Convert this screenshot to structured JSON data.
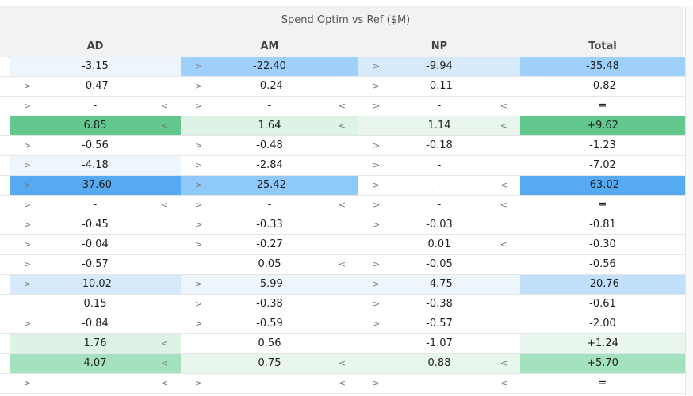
{
  "table": {
    "title": "Spend Optim vs Ref ($M)",
    "columns": [
      "AD",
      "AM",
      "NP",
      "Total"
    ],
    "colors": {
      "blue_1": "#eef6fd",
      "blue_2": "#d6eafb",
      "blue_3": "#c2e0fb",
      "blue_4": "#9fd0fb",
      "blue_5": "#8fc9fa",
      "blue_6": "#55aaf2",
      "green_1": "#e8f6ee",
      "green_2": "#ddf3e6",
      "green_3": "#a4e2bf",
      "green_4": "#62c88e"
    },
    "rows": [
      {
        "cells": [
          {
            "v": "-3.15",
            "l": "",
            "r": "",
            "bg": "blue_1"
          },
          {
            "v": "-22.40",
            "l": ">",
            "r": "",
            "bg": "blue_4"
          },
          {
            "v": "-9.94",
            "l": ">",
            "r": "",
            "bg": "blue_2"
          },
          {
            "v": "-35.48",
            "l": "",
            "r": "",
            "bg": "blue_4"
          }
        ]
      },
      {
        "cells": [
          {
            "v": "-0.47",
            "l": ">",
            "r": "",
            "bg": ""
          },
          {
            "v": "-0.24",
            "l": ">",
            "r": "",
            "bg": ""
          },
          {
            "v": "-0.11",
            "l": ">",
            "r": "",
            "bg": ""
          },
          {
            "v": "-0.82",
            "l": "",
            "r": "",
            "bg": ""
          }
        ]
      },
      {
        "cells": [
          {
            "v": "-",
            "l": ">",
            "r": "<",
            "bg": ""
          },
          {
            "v": "-",
            "l": ">",
            "r": "<",
            "bg": ""
          },
          {
            "v": "-",
            "l": ">",
            "r": "<",
            "bg": ""
          },
          {
            "v": "=",
            "l": "",
            "r": "",
            "bg": ""
          }
        ]
      },
      {
        "cells": [
          {
            "v": "6.85",
            "l": "",
            "r": "<",
            "bg": "green_4"
          },
          {
            "v": "1.64",
            "l": "",
            "r": "<",
            "bg": "green_2"
          },
          {
            "v": "1.14",
            "l": "",
            "r": "<",
            "bg": "green_1"
          },
          {
            "v": "+9.62",
            "l": "",
            "r": "",
            "bg": "green_4"
          }
        ]
      },
      {
        "cells": [
          {
            "v": "-0.56",
            "l": ">",
            "r": "",
            "bg": ""
          },
          {
            "v": "-0.48",
            "l": ">",
            "r": "",
            "bg": ""
          },
          {
            "v": "-0.18",
            "l": ">",
            "r": "",
            "bg": ""
          },
          {
            "v": "-1.23",
            "l": "",
            "r": "",
            "bg": ""
          }
        ]
      },
      {
        "cells": [
          {
            "v": "-4.18",
            "l": ">",
            "r": "",
            "bg": "blue_1"
          },
          {
            "v": "-2.84",
            "l": ">",
            "r": "",
            "bg": ""
          },
          {
            "v": "-",
            "l": ">",
            "r": "",
            "bg": ""
          },
          {
            "v": "-7.02",
            "l": "",
            "r": "",
            "bg": ""
          }
        ]
      },
      {
        "cells": [
          {
            "v": "-37.60",
            "l": ">",
            "r": "",
            "bg": "blue_6"
          },
          {
            "v": "-25.42",
            "l": ">",
            "r": "",
            "bg": "blue_5"
          },
          {
            "v": "-",
            "l": ">",
            "r": "<",
            "bg": ""
          },
          {
            "v": "-63.02",
            "l": "",
            "r": "",
            "bg": "blue_6"
          }
        ]
      },
      {
        "cells": [
          {
            "v": "-",
            "l": ">",
            "r": "<",
            "bg": ""
          },
          {
            "v": "-",
            "l": ">",
            "r": "<",
            "bg": ""
          },
          {
            "v": "-",
            "l": ">",
            "r": "<",
            "bg": ""
          },
          {
            "v": "=",
            "l": "",
            "r": "",
            "bg": ""
          }
        ]
      },
      {
        "cells": [
          {
            "v": "-0.45",
            "l": ">",
            "r": "",
            "bg": ""
          },
          {
            "v": "-0.33",
            "l": ">",
            "r": "",
            "bg": ""
          },
          {
            "v": "-0.03",
            "l": ">",
            "r": "",
            "bg": ""
          },
          {
            "v": "-0.81",
            "l": "",
            "r": "",
            "bg": ""
          }
        ]
      },
      {
        "cells": [
          {
            "v": "-0.04",
            "l": ">",
            "r": "",
            "bg": ""
          },
          {
            "v": "-0.27",
            "l": ">",
            "r": "",
            "bg": ""
          },
          {
            "v": "0.01",
            "l": "",
            "r": "<",
            "bg": ""
          },
          {
            "v": "-0.30",
            "l": "",
            "r": "",
            "bg": ""
          }
        ]
      },
      {
        "cells": [
          {
            "v": "-0.57",
            "l": ">",
            "r": "",
            "bg": ""
          },
          {
            "v": "0.05",
            "l": "",
            "r": "<",
            "bg": ""
          },
          {
            "v": "-0.05",
            "l": ">",
            "r": "",
            "bg": ""
          },
          {
            "v": "-0.56",
            "l": "",
            "r": "",
            "bg": ""
          }
        ]
      },
      {
        "cells": [
          {
            "v": "-10.02",
            "l": ">",
            "r": "",
            "bg": "blue_2"
          },
          {
            "v": "-5.99",
            "l": ">",
            "r": "",
            "bg": "blue_1"
          },
          {
            "v": "-4.75",
            "l": ">",
            "r": "",
            "bg": "blue_1"
          },
          {
            "v": "-20.76",
            "l": "",
            "r": "",
            "bg": "blue_3"
          }
        ]
      },
      {
        "cells": [
          {
            "v": "0.15",
            "l": "",
            "r": "",
            "bg": ""
          },
          {
            "v": "-0.38",
            "l": ">",
            "r": "",
            "bg": ""
          },
          {
            "v": "-0.38",
            "l": ">",
            "r": "",
            "bg": ""
          },
          {
            "v": "-0.61",
            "l": "",
            "r": "",
            "bg": ""
          }
        ]
      },
      {
        "cells": [
          {
            "v": "-0.84",
            "l": ">",
            "r": "",
            "bg": ""
          },
          {
            "v": "-0.59",
            "l": ">",
            "r": "",
            "bg": ""
          },
          {
            "v": "-0.57",
            "l": ">",
            "r": "",
            "bg": ""
          },
          {
            "v": "-2.00",
            "l": "",
            "r": "",
            "bg": ""
          }
        ]
      },
      {
        "cells": [
          {
            "v": "1.76",
            "l": "",
            "r": "<",
            "bg": "green_2"
          },
          {
            "v": "0.56",
            "l": "",
            "r": "",
            "bg": ""
          },
          {
            "v": "-1.07",
            "l": "",
            "r": "",
            "bg": ""
          },
          {
            "v": "+1.24",
            "l": "",
            "r": "",
            "bg": "green_1"
          }
        ]
      },
      {
        "cells": [
          {
            "v": "4.07",
            "l": "",
            "r": "<",
            "bg": "green_3"
          },
          {
            "v": "0.75",
            "l": "",
            "r": "<",
            "bg": "green_1"
          },
          {
            "v": "0.88",
            "l": "",
            "r": "<",
            "bg": "green_1"
          },
          {
            "v": "+5.70",
            "l": "",
            "r": "",
            "bg": "green_3"
          }
        ]
      },
      {
        "cells": [
          {
            "v": "-",
            "l": ">",
            "r": "<",
            "bg": ""
          },
          {
            "v": "-",
            "l": ">",
            "r": "<",
            "bg": ""
          },
          {
            "v": "-",
            "l": ">",
            "r": "<",
            "bg": ""
          },
          {
            "v": "=",
            "l": "",
            "r": "",
            "bg": ""
          }
        ]
      }
    ]
  }
}
